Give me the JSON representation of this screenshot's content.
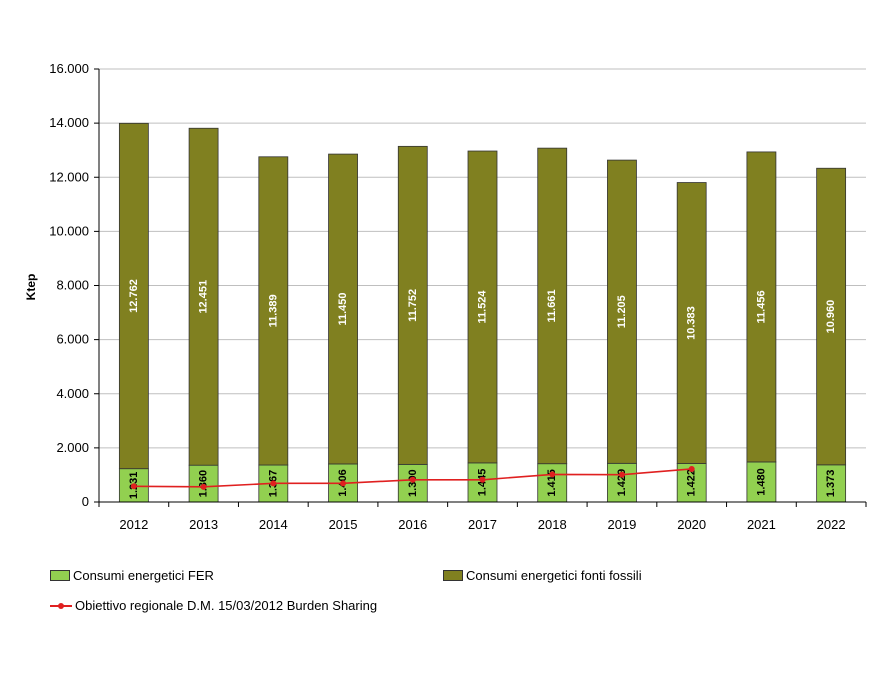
{
  "chart_data": {
    "type": "bar",
    "stacked": true,
    "title": "",
    "xlabel": "",
    "ylabel": "Ktep",
    "ylim": [
      0,
      16000
    ],
    "yticks": [
      0,
      2000,
      4000,
      6000,
      8000,
      10000,
      12000,
      14000,
      16000
    ],
    "ytick_labels": [
      "0",
      "2.000",
      "4.000",
      "6.000",
      "8.000",
      "10.000",
      "12.000",
      "14.000",
      "16.000"
    ],
    "categories": [
      "2012",
      "2013",
      "2014",
      "2015",
      "2016",
      "2017",
      "2018",
      "2019",
      "2020",
      "2021",
      "2022"
    ],
    "grid": true,
    "series": [
      {
        "name": "Consumi energetici FER",
        "color": "#92d050",
        "values": [
          1231,
          1360,
          1367,
          1406,
          1390,
          1445,
          1415,
          1429,
          1422,
          1480,
          1373
        ],
        "labels": [
          "1.231",
          "1.360",
          "1.367",
          "1.406",
          "1.390",
          "1.445",
          "1.415",
          "1.429",
          "1.422",
          "1.480",
          "1.373"
        ]
      },
      {
        "name": "Consumi energetici fonti fossili",
        "color": "#808020",
        "values": [
          12762,
          12451,
          11389,
          11450,
          11752,
          11524,
          11661,
          11205,
          10383,
          11456,
          10960
        ],
        "labels": [
          "12.762",
          "12.451",
          "11.389",
          "11.450",
          "11.752",
          "11.524",
          "11.661",
          "11.205",
          "10.383",
          "11.456",
          "10.960"
        ]
      }
    ],
    "line_series": {
      "name": "Obiettivo regionale D.M. 15/03/2012 Burden Sharing",
      "color": "#e02020",
      "categories": [
        "2012",
        "2013",
        "2014",
        "2015",
        "2016",
        "2017",
        "2018",
        "2019",
        "2020"
      ],
      "values": [
        580,
        560,
        690,
        690,
        820,
        820,
        1020,
        1010,
        1220
      ]
    }
  }
}
